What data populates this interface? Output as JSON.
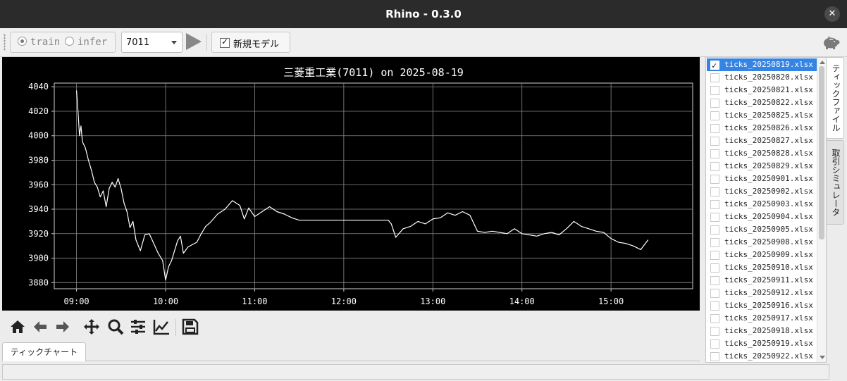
{
  "window": {
    "title": "Rhino - 0.3.0",
    "close_glyph": "✕"
  },
  "toolbar": {
    "mode_train": "train",
    "mode_infer": "infer",
    "mode_selected": "train",
    "code_value": "7011",
    "new_model_label": "新規モデル",
    "new_model_checked": true,
    "play_icon": "play-icon",
    "app_icon": "piggy-bank-icon"
  },
  "chart_tab": {
    "label": "ティックチャート"
  },
  "side_tabs": [
    "ティックファイル",
    "取引シミュレータ"
  ],
  "files": {
    "selected_index": 0,
    "items": [
      "ticks_20250819.xlsx",
      "ticks_20250820.xlsx",
      "ticks_20250821.xlsx",
      "ticks_20250822.xlsx",
      "ticks_20250825.xlsx",
      "ticks_20250826.xlsx",
      "ticks_20250827.xlsx",
      "ticks_20250828.xlsx",
      "ticks_20250829.xlsx",
      "ticks_20250901.xlsx",
      "ticks_20250902.xlsx",
      "ticks_20250903.xlsx",
      "ticks_20250904.xlsx",
      "ticks_20250905.xlsx",
      "ticks_20250908.xlsx",
      "ticks_20250909.xlsx",
      "ticks_20250910.xlsx",
      "ticks_20250911.xlsx",
      "ticks_20250912.xlsx",
      "ticks_20250916.xlsx",
      "ticks_20250917.xlsx",
      "ticks_20250918.xlsx",
      "ticks_20250919.xlsx",
      "ticks_20250922.xlsx"
    ]
  },
  "nav_toolbar": [
    "home-icon",
    "back-icon",
    "forward-icon",
    "pan-icon",
    "zoom-icon",
    "configure-subplots-icon",
    "edit-axis-icon",
    "save-icon"
  ],
  "colors": {
    "chart_bg": "#000000",
    "line": "#ffffff",
    "grid": "#8a8a8a",
    "selection": "#3584e4"
  },
  "chart_data": {
    "type": "line",
    "title": "三菱重工業(7011) on 2025-08-19",
    "xlabel": "",
    "ylabel": "",
    "x_ticks": [
      "09:00",
      "10:00",
      "11:00",
      "12:00",
      "13:00",
      "14:00",
      "15:00"
    ],
    "y_ticks": [
      3880,
      3900,
      3920,
      3940,
      3960,
      3980,
      4000,
      4020,
      4040
    ],
    "xlim": [
      "08:45",
      "15:55"
    ],
    "ylim": [
      3875,
      4043
    ],
    "grid": true,
    "series": [
      {
        "color": "#ffffff",
        "x": [
          "09:00",
          "09:01",
          "09:02",
          "09:03",
          "09:04",
          "09:06",
          "09:08",
          "09:10",
          "09:12",
          "09:14",
          "09:16",
          "09:18",
          "09:20",
          "09:22",
          "09:24",
          "09:26",
          "09:28",
          "09:30",
          "09:32",
          "09:34",
          "09:36",
          "09:38",
          "09:40",
          "09:43",
          "09:46",
          "09:49",
          "09:52",
          "09:55",
          "09:58",
          "10:00",
          "10:02",
          "10:04",
          "10:06",
          "10:08",
          "10:10",
          "10:12",
          "10:15",
          "10:18",
          "10:21",
          "10:24",
          "10:27",
          "10:30",
          "10:35",
          "10:40",
          "10:45",
          "10:50",
          "10:53",
          "10:56",
          "11:00",
          "11:05",
          "11:10",
          "11:15",
          "11:20",
          "11:25",
          "11:30",
          "12:30",
          "12:32",
          "12:35",
          "12:40",
          "12:45",
          "12:50",
          "12:55",
          "13:00",
          "13:05",
          "13:10",
          "13:15",
          "13:20",
          "13:25",
          "13:30",
          "13:35",
          "13:40",
          "13:45",
          "13:50",
          "13:55",
          "14:00",
          "14:05",
          "14:10",
          "14:15",
          "14:20",
          "14:25",
          "14:30",
          "14:35",
          "14:40",
          "14:45",
          "14:50",
          "14:55",
          "15:00",
          "15:05",
          "15:10",
          "15:15",
          "15:20",
          "15:25"
        ],
        "y": [
          4037,
          4020,
          4000,
          4008,
          3995,
          3990,
          3980,
          3972,
          3962,
          3958,
          3950,
          3955,
          3942,
          3957,
          3962,
          3958,
          3965,
          3957,
          3945,
          3938,
          3925,
          3930,
          3915,
          3906,
          3919,
          3920,
          3912,
          3904,
          3898,
          3882,
          3893,
          3898,
          3906,
          3914,
          3918,
          3904,
          3909,
          3911,
          3913,
          3920,
          3926,
          3929,
          3936,
          3940,
          3947,
          3943,
          3932,
          3941,
          3934,
          3938,
          3942,
          3938,
          3936,
          3933,
          3931,
          3931,
          3928,
          3917,
          3924,
          3926,
          3930,
          3928,
          3932,
          3933,
          3937,
          3935,
          3938,
          3935,
          3922,
          3921,
          3922,
          3921,
          3920,
          3924,
          3920,
          3919,
          3918,
          3920,
          3921,
          3919,
          3924,
          3930,
          3926,
          3924,
          3922,
          3921,
          3916,
          3913,
          3912,
          3910,
          3907,
          3915
        ]
      }
    ]
  }
}
